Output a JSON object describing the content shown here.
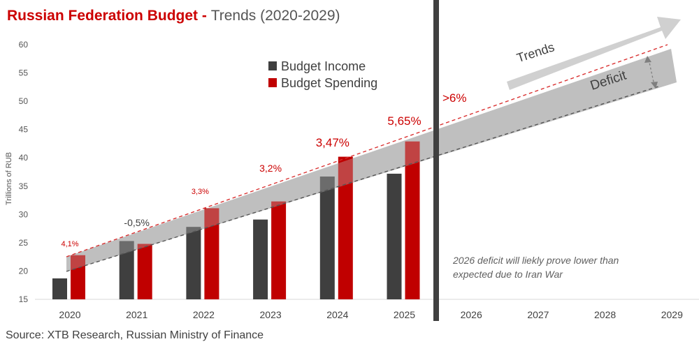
{
  "title": {
    "main": "Russian Federation Budget",
    "separator": " - ",
    "sub": "Trends (2020-2029)"
  },
  "source": "Source: XTB Research, Russian Ministry of Finance",
  "colors": {
    "income": "#3f3f3f",
    "spending": "#c00000",
    "accent": "#cc0000",
    "band": "#a6a6a6",
    "divider": "#404040",
    "axis_text": "#555555"
  },
  "chart_data": {
    "type": "bar",
    "ylabel": "Trillions of RUB",
    "ylim": [
      15,
      60
    ],
    "yticks": [
      15,
      20,
      25,
      30,
      35,
      40,
      45,
      50,
      55,
      60
    ],
    "categories": [
      "2020",
      "2021",
      "2022",
      "2023",
      "2024",
      "2025",
      "2026",
      "2027",
      "2028",
      "2029"
    ],
    "series": [
      {
        "name": "Budget Income",
        "values": [
          18.7,
          25.3,
          27.8,
          29.1,
          36.7,
          37.2,
          null,
          null,
          null,
          null
        ]
      },
      {
        "name": "Budget Spending",
        "values": [
          22.8,
          24.8,
          31.1,
          32.3,
          40.2,
          42.9,
          null,
          null,
          null,
          null
        ]
      }
    ],
    "deficit_labels": [
      {
        "category": "2020",
        "text": "4,1%",
        "size": "small"
      },
      {
        "category": "2021",
        "text": "-0,5%",
        "size": "medium"
      },
      {
        "category": "2022",
        "text": "3,3%",
        "size": "small"
      },
      {
        "category": "2023",
        "text": "3,2%",
        "size": "medium"
      },
      {
        "category": "2024",
        "text": "3,47%",
        "size": "large"
      },
      {
        "category": "2025",
        "text": "5,65%",
        "size": "large"
      },
      {
        "category": "2026",
        "text": ">6%",
        "size": "large"
      }
    ],
    "legend_position": "top-center",
    "annotations": {
      "trend_arrow": "Trends",
      "deficit_band": "Deficit",
      "note": [
        "2026 deficit will liekly prove lower than",
        "expected due to Iran War"
      ]
    },
    "grid": false
  }
}
